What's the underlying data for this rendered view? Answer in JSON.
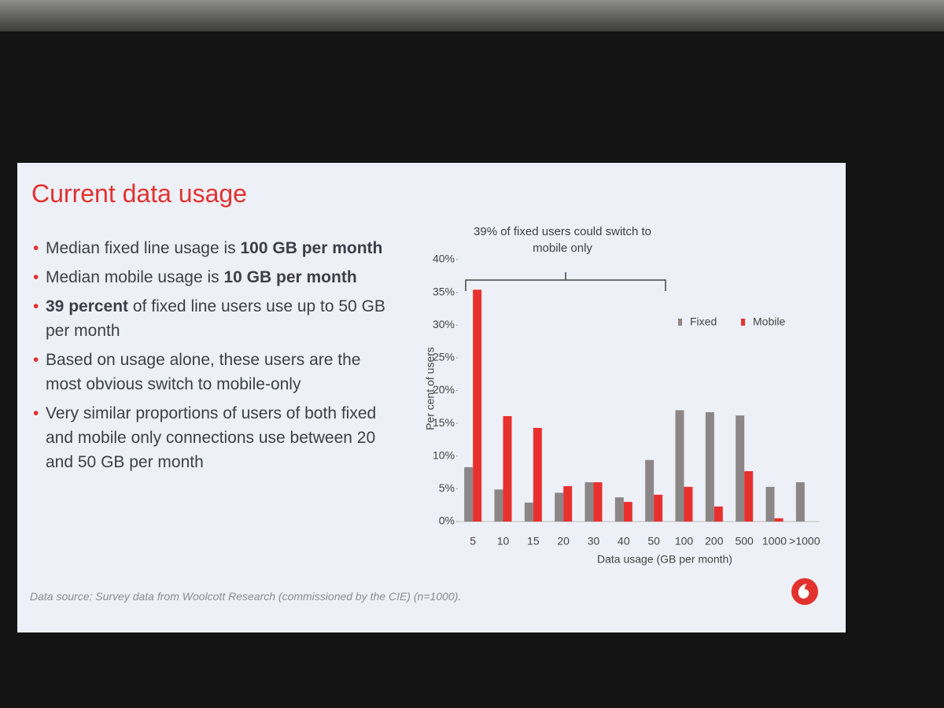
{
  "slide": {
    "title": "Current data usage",
    "bullets": [
      [
        {
          "text": "Median fixed line usage is "
        },
        {
          "text": "100 GB per month",
          "strong": true
        }
      ],
      [
        {
          "text": "Median mobile usage is "
        },
        {
          "text": "10 GB per month",
          "strong": true
        }
      ],
      [
        {
          "text": "39 percent",
          "strong": true
        },
        {
          "text": " of fixed line users use up to 50 GB per month"
        }
      ],
      [
        {
          "text": "Based on usage alone, these users are the most obvious switch to mobile-only"
        }
      ],
      [
        {
          "text": "Very similar proportions of users of both fixed and mobile only connections use between 20 and 50 GB per month"
        }
      ]
    ],
    "source": "Data source: Survey data from Woolcott Research (commissioned by the CIE) (n=1000)."
  },
  "chart_data": {
    "type": "bar",
    "annotation": "39% of fixed users could switch to mobile only",
    "x_label": "Data usage (GB per month)",
    "y_label": "Per cent of users",
    "categories": [
      "5",
      "10",
      "15",
      "20",
      "30",
      "40",
      "50",
      "100",
      "200",
      "500",
      "1000",
      ">1000"
    ],
    "series": [
      {
        "name": "Fixed",
        "color": "#8c8686",
        "values": [
          8.3,
          4.9,
          2.9,
          4.4,
          6,
          3.7,
          9.4,
          17,
          16.7,
          16.2,
          5.3,
          6
        ]
      },
      {
        "name": "Mobile",
        "color": "#e8312f",
        "values": [
          35.4,
          16.1,
          14.3,
          5.4,
          6,
          3,
          4.1,
          5.3,
          2.3,
          7.7,
          0.5,
          0
        ]
      }
    ],
    "ylim": [
      0,
      40
    ],
    "yticks": [
      {
        "value": 0,
        "label": "0%"
      },
      {
        "value": 5,
        "label": "5%"
      },
      {
        "value": 10,
        "label": "10%"
      },
      {
        "value": 15,
        "label": "15%"
      },
      {
        "value": 20,
        "label": "20%"
      },
      {
        "value": 25,
        "label": "25%"
      },
      {
        "value": 30,
        "label": "30%"
      },
      {
        "value": 35,
        "label": "35%"
      },
      {
        "value": 40,
        "label": "40%"
      }
    ],
    "legend": "upper-right"
  }
}
